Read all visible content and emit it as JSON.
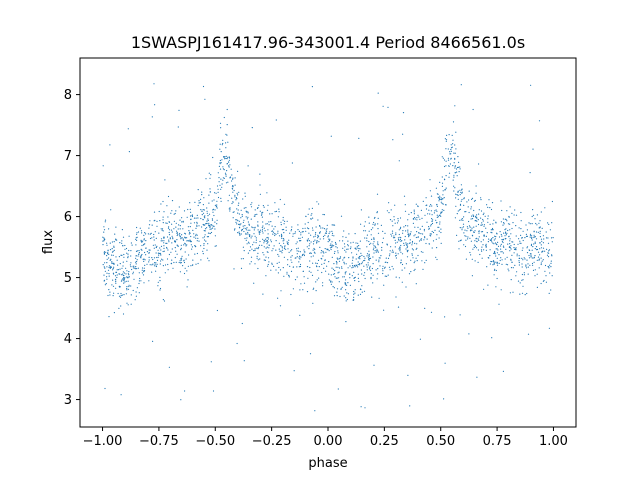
{
  "chart_data": {
    "type": "scatter",
    "title": "1SWASPJ161417.96-343001.4 Period 8466561.0s",
    "xlabel": "phase",
    "ylabel": "flux",
    "xlim": [
      -1.1,
      1.1
    ],
    "ylim": [
      2.55,
      8.6
    ],
    "xticks": [
      -1.0,
      -0.75,
      -0.5,
      -0.25,
      0.0,
      0.25,
      0.5,
      0.75,
      1.0
    ],
    "xtick_labels": [
      "−1.00",
      "−0.75",
      "−0.50",
      "−0.25",
      "0.00",
      "0.25",
      "0.50",
      "0.75",
      "1.00"
    ],
    "yticks": [
      3,
      4,
      5,
      6,
      7,
      8
    ],
    "ytick_labels": [
      "3",
      "4",
      "5",
      "6",
      "7",
      "8"
    ],
    "grid": false,
    "legend": "none",
    "marker_color": "#1f77b4",
    "series": [
      {
        "profile_x": [
          0.0,
          0.05,
          0.08,
          0.1,
          0.15,
          0.2,
          0.25,
          0.3,
          0.35,
          0.4,
          0.45,
          0.5,
          0.53,
          0.55,
          0.6,
          0.65,
          0.7,
          0.75,
          0.8,
          0.85,
          0.9,
          0.95,
          1.0
        ],
        "profile_y": [
          5.4,
          5.2,
          5.0,
          5.0,
          5.3,
          5.5,
          5.4,
          5.7,
          5.6,
          5.7,
          5.9,
          6.0,
          6.9,
          7.0,
          5.9,
          5.8,
          5.7,
          5.5,
          5.6,
          5.3,
          5.5,
          5.5,
          5.4
        ],
        "scatter_sd": 0.3,
        "outlier_range": [
          2.8,
          8.3
        ]
      }
    ]
  }
}
